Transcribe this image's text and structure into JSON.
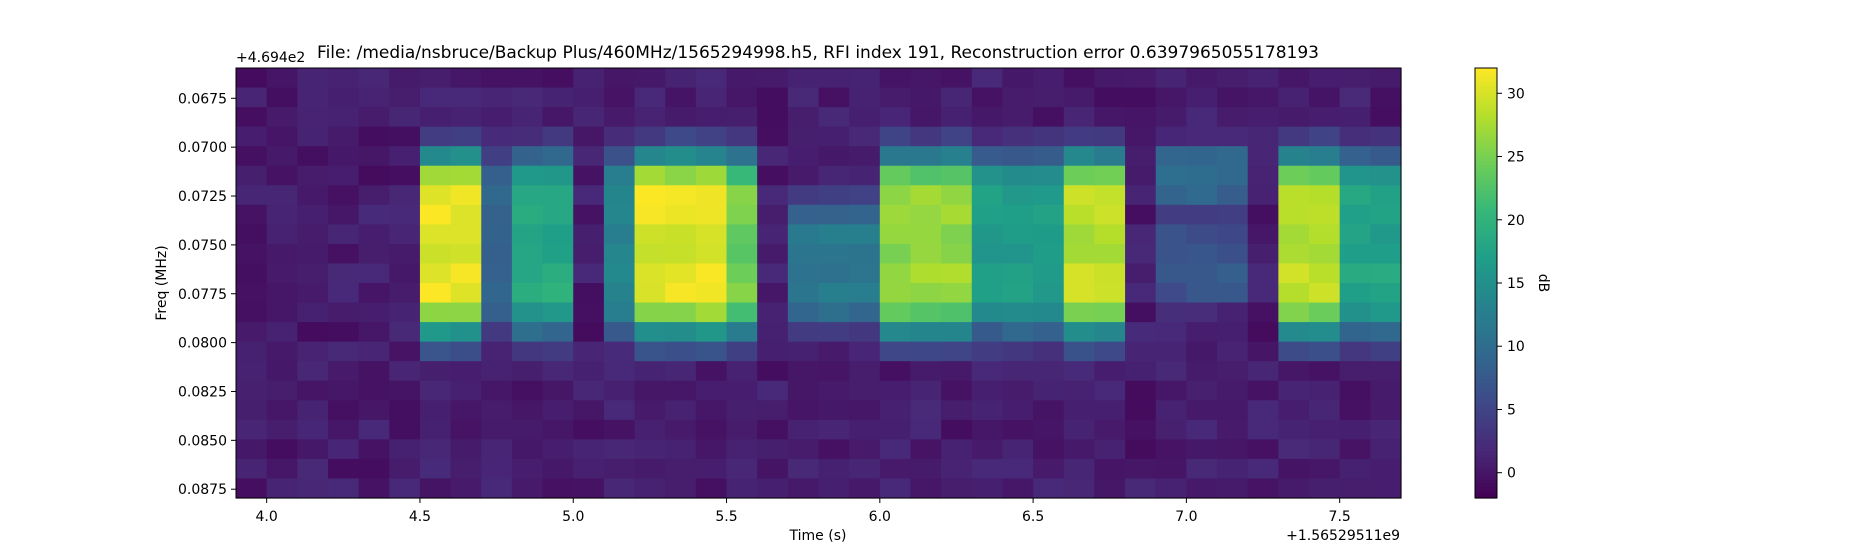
{
  "chart_data": {
    "type": "heatmap",
    "title": "File: /media/nsbruce/Backup Plus/460MHz/1565294998.h5, RFI index 191, Reconstruction error 0.6397965055178193",
    "xlabel": "Time (s)",
    "ylabel": "Freq (MHz)",
    "x_offset_label": "+1.56529511e9",
    "y_offset_label": "+4.694e2",
    "xlim": [
      3.9,
      7.7
    ],
    "ylim": [
      0.08795,
      0.06595
    ],
    "x_ticks": [
      "4.0",
      "4.5",
      "5.0",
      "5.5",
      "6.0",
      "6.5",
      "7.0",
      "7.5"
    ],
    "y_ticks": [
      "0.0675",
      "0.0700",
      "0.0725",
      "0.0750",
      "0.0775",
      "0.0800",
      "0.0825",
      "0.0850",
      "0.0875"
    ],
    "colorbar": {
      "label": "dB",
      "range": [
        -2,
        32
      ],
      "ticks": [
        "0",
        "5",
        "10",
        "15",
        "20",
        "25",
        "30"
      ]
    },
    "colormap": [
      "#440154",
      "#482878",
      "#3e4989",
      "#31688e",
      "#26828e",
      "#1f9e89",
      "#35b779",
      "#6ece58",
      "#b5de2b",
      "#fde725"
    ],
    "grid_shape": {
      "time_bins": 38,
      "freq_bins": 22
    },
    "time_activity": [
      {
        "range": [
          4.5,
          4.7
        ],
        "level": 31,
        "profile": "full"
      },
      {
        "range": [
          4.7,
          4.8
        ],
        "level": 9,
        "profile": "full"
      },
      {
        "range": [
          4.8,
          5.0
        ],
        "level": 19,
        "profile": "full"
      },
      {
        "range": [
          5.1,
          5.2
        ],
        "level": 14,
        "profile": "full"
      },
      {
        "range": [
          5.2,
          5.5
        ],
        "level": 31,
        "profile": "full"
      },
      {
        "range": [
          5.5,
          5.6
        ],
        "level": 25,
        "profile": "full"
      },
      {
        "range": [
          5.7,
          6.0
        ],
        "level": 12,
        "profile": "narrow"
      },
      {
        "range": [
          6.0,
          6.3
        ],
        "level": 27,
        "profile": "full"
      },
      {
        "range": [
          6.3,
          6.6
        ],
        "level": 17,
        "profile": "full"
      },
      {
        "range": [
          6.6,
          6.8
        ],
        "level": 29,
        "profile": "full"
      },
      {
        "range": [
          6.9,
          7.2
        ],
        "level": 10,
        "profile": "wide"
      },
      {
        "range": [
          7.3,
          7.5
        ],
        "level": 29,
        "profile": "full"
      },
      {
        "range": [
          7.5,
          7.7
        ],
        "level": 18,
        "profile": "full"
      }
    ]
  }
}
